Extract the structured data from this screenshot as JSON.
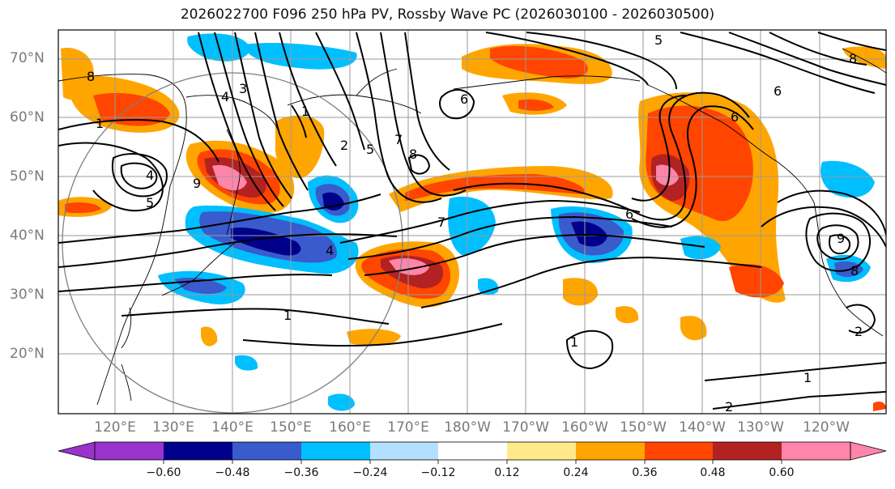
{
  "title": "2026022700 F096 250 hPa PV, Rossby Wave PC (2026030100 - 2026030500)",
  "lat_labels": [
    "70°N",
    "60°N",
    "50°N",
    "40°N",
    "30°N",
    "20°N"
  ],
  "lon_labels": [
    "120°E",
    "130°E",
    "140°E",
    "150°E",
    "160°E",
    "170°E",
    "180°W",
    "170°W",
    "160°W",
    "150°W",
    "140°W",
    "130°W",
    "120°W"
  ],
  "colorbar": {
    "ticks": [
      "−0.60",
      "−0.48",
      "−0.36",
      "−0.24",
      "−0.12",
      "0.12",
      "0.24",
      "0.36",
      "0.48",
      "0.60"
    ],
    "colors": [
      "#9933cc",
      "#00008b",
      "#3a5bcc",
      "#00bfff",
      "#b3e0ff",
      "#ffffff",
      "#ffe98a",
      "#ffa500",
      "#ff4500",
      "#b22222",
      "#ff85aa"
    ]
  },
  "contour_labels": [
    "8",
    "4",
    "3",
    "1",
    "2",
    "5",
    "7",
    "8",
    "4",
    "5",
    "9",
    "6",
    "5",
    "8",
    "6",
    "4",
    "7",
    "6",
    "1",
    "1",
    "9",
    "1",
    "2",
    "2",
    "1",
    "8",
    "6"
  ]
}
